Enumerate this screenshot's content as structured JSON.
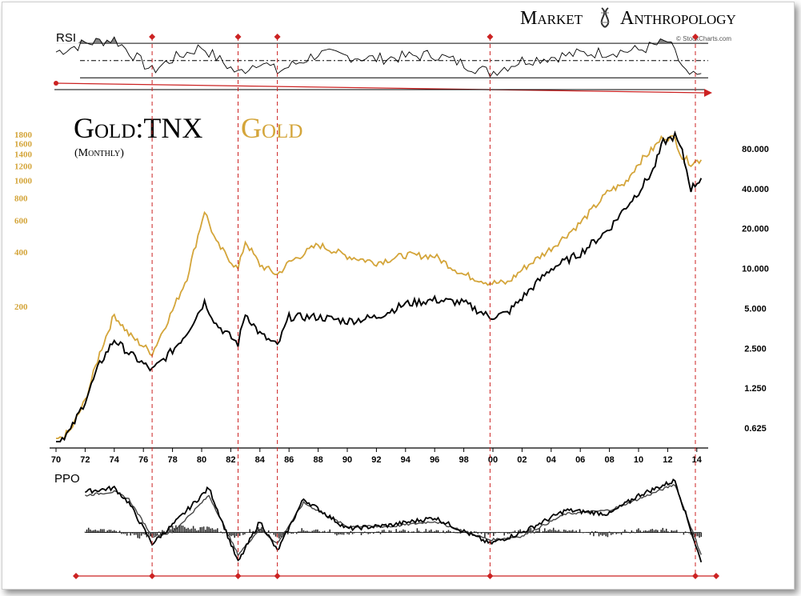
{
  "brand": {
    "name_left": "Market",
    "name_right": "Anthropology",
    "credit": "© StockCharts.com"
  },
  "colors": {
    "gold": "#d4a53a",
    "ratio": "#000000",
    "marker": "#cc2222",
    "rsi_fill": "#666666"
  },
  "chart_data": [
    {
      "type": "line",
      "panel": "RSI",
      "title": "RSI",
      "x": [
        1970,
        1972,
        1974,
        1976.6,
        1978,
        1980,
        1982.5,
        1984,
        1985.2,
        1988,
        1992,
        1996,
        1999.8,
        2002,
        2006,
        2010,
        2012,
        2013.5,
        2014.3
      ],
      "series": [
        {
          "name": "",
          "values": [
            60,
            70,
            75,
            38,
            52,
            66,
            35,
            50,
            37,
            58,
            52,
            57,
            36,
            50,
            58,
            62,
            72,
            30,
            35
          ]
        }
      ],
      "levels": [
        70,
        50,
        30
      ],
      "ylim": [
        20,
        85
      ]
    },
    {
      "type": "line",
      "panel": "price",
      "title": "Gold:TNX",
      "title_gold": "Gold",
      "subtitle": "(Monthly)",
      "log_scale": true,
      "x": [
        1970,
        1971,
        1972,
        1973,
        1974,
        1975,
        1976.6,
        1978,
        1979,
        1980.2,
        1981,
        1982.5,
        1983,
        1984,
        1985.2,
        1986,
        1988,
        1990,
        1992,
        1994,
        1996,
        1998,
        1999.8,
        2001,
        2002,
        2004,
        2006,
        2008,
        2009,
        2010,
        2011,
        2011.7,
        2012.5,
        2013,
        2013.6,
        2014.3
      ],
      "series": [
        {
          "name": "Gold:TNX",
          "axis": "right",
          "values": [
            0.48,
            0.6,
            1.0,
            1.9,
            2.9,
            2.3,
            1.7,
            2.4,
            3.3,
            5.6,
            3.8,
            2.7,
            4.6,
            3.2,
            2.6,
            4.3,
            4.3,
            4.0,
            4.3,
            5.4,
            5.8,
            5.5,
            4.3,
            4.6,
            6.0,
            10.0,
            13.0,
            20.0,
            28.0,
            38.0,
            55.0,
            90.0,
            100.0,
            75.0,
            40.0,
            48.0
          ]
        },
        {
          "name": "Gold",
          "axis": "left",
          "values": [
            35,
            41,
            60,
            110,
            180,
            140,
            110,
            190,
            290,
            680,
            450,
            320,
            460,
            340,
            300,
            350,
            440,
            380,
            350,
            385,
            380,
            300,
            270,
            270,
            320,
            420,
            580,
            880,
            950,
            1250,
            1500,
            1750,
            1700,
            1350,
            1250,
            1300
          ]
        }
      ],
      "left_ticks": [
        "1800",
        "1600",
        "1400",
        "1200",
        "1000",
        "800",
        "600",
        "400",
        "200"
      ],
      "right_ticks": [
        "80.000",
        "40.000",
        "20.000",
        "10.000",
        "5.000",
        "2.500",
        "1.250",
        "0.625"
      ],
      "x_ticks": [
        "70",
        "72",
        "74",
        "76",
        "78",
        "80",
        "82",
        "84",
        "86",
        "88",
        "90",
        "92",
        "94",
        "96",
        "98",
        "00",
        "02",
        "04",
        "06",
        "08",
        "10",
        "12",
        "14"
      ],
      "markers": [
        1976.6,
        1982.5,
        1985.2,
        1999.8,
        2013.9
      ]
    },
    {
      "type": "line",
      "panel": "PPO",
      "title": "PPO",
      "x": [
        1972,
        1974,
        1975,
        1976.6,
        1978,
        1980.5,
        1982.5,
        1984,
        1985.2,
        1987,
        1990,
        1993,
        1996,
        1999.8,
        2002,
        2005,
        2008,
        2010,
        2012.5,
        2014.3
      ],
      "series": [
        {
          "name": "",
          "values": [
            55,
            60,
            40,
            -15,
            10,
            60,
            -40,
            15,
            -25,
            45,
            5,
            10,
            20,
            -15,
            0,
            30,
            25,
            50,
            70,
            -40
          ]
        },
        {
          "name": "",
          "values": [
            50,
            55,
            45,
            -5,
            0,
            50,
            -30,
            5,
            -15,
            40,
            8,
            8,
            15,
            -10,
            -5,
            25,
            30,
            45,
            65,
            -30
          ]
        }
      ],
      "ylim": [
        -50,
        75
      ]
    }
  ]
}
